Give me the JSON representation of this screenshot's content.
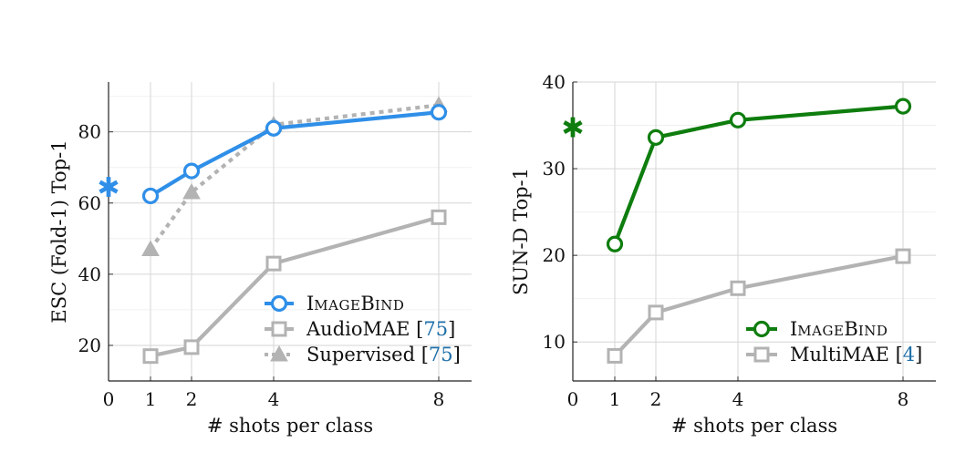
{
  "chart_data": [
    {
      "type": "line",
      "xlabel": "# shots per class",
      "ylabel": "ESC (Fold-1) Top-1",
      "x_ticks": [
        "0",
        "1",
        "2",
        "4",
        "8"
      ],
      "y_ticks": [
        "20",
        "40",
        "60",
        "80"
      ],
      "ylim": [
        10,
        94
      ],
      "grid": true,
      "legend_position": "bottom-right",
      "zero_shot_marker": {
        "x": 0,
        "y": 65,
        "color": "#2f8fe8",
        "glyph": "✱"
      },
      "series": [
        {
          "name_first": "I",
          "name_rest": "MAGE",
          "name_first2": "B",
          "name_rest2": "IND",
          "cite": "",
          "x": [
            1,
            2,
            4,
            8
          ],
          "y": [
            62,
            69,
            81,
            85.5
          ],
          "color": "#2f8fe8",
          "marker": "circle",
          "dash": "solid"
        },
        {
          "name_text": "AudioMAE [",
          "cite": "75",
          "name_end": "]",
          "x": [
            1,
            2,
            4,
            8
          ],
          "y": [
            17,
            19.5,
            43,
            56
          ],
          "color": "#b3b3b3",
          "marker": "square",
          "dash": "solid"
        },
        {
          "name_text": "Supervised [",
          "cite": "75",
          "name_end": "]",
          "x": [
            1,
            2,
            4,
            8
          ],
          "y": [
            47,
            63,
            82,
            87.5
          ],
          "color": "#b3b3b3",
          "marker": "triangle",
          "dash": "dotted"
        }
      ]
    },
    {
      "type": "line",
      "xlabel": "# shots per class",
      "ylabel": "SUN-D Top-1",
      "x_ticks": [
        "0",
        "1",
        "2",
        "4",
        "8"
      ],
      "y_ticks": [
        "10",
        "20",
        "30",
        "40"
      ],
      "ylim": [
        5.5,
        40
      ],
      "grid": true,
      "legend_position": "bottom-right",
      "zero_shot_marker": {
        "x": 0,
        "y": 35,
        "color": "#0e7d0e",
        "glyph": "✱"
      },
      "series": [
        {
          "name_first": "I",
          "name_rest": "MAGE",
          "name_first2": "B",
          "name_rest2": "IND",
          "cite": "",
          "x": [
            1,
            2,
            4,
            8
          ],
          "y": [
            21.3,
            33.6,
            35.6,
            37.2
          ],
          "color": "#0e7d0e",
          "marker": "circle",
          "dash": "solid"
        },
        {
          "name_text": "MultiMAE [",
          "cite": "4",
          "name_end": "]",
          "x": [
            1,
            2,
            4,
            8
          ],
          "y": [
            8.4,
            13.4,
            16.2,
            19.9
          ],
          "color": "#b3b3b3",
          "marker": "square",
          "dash": "solid"
        }
      ]
    }
  ]
}
